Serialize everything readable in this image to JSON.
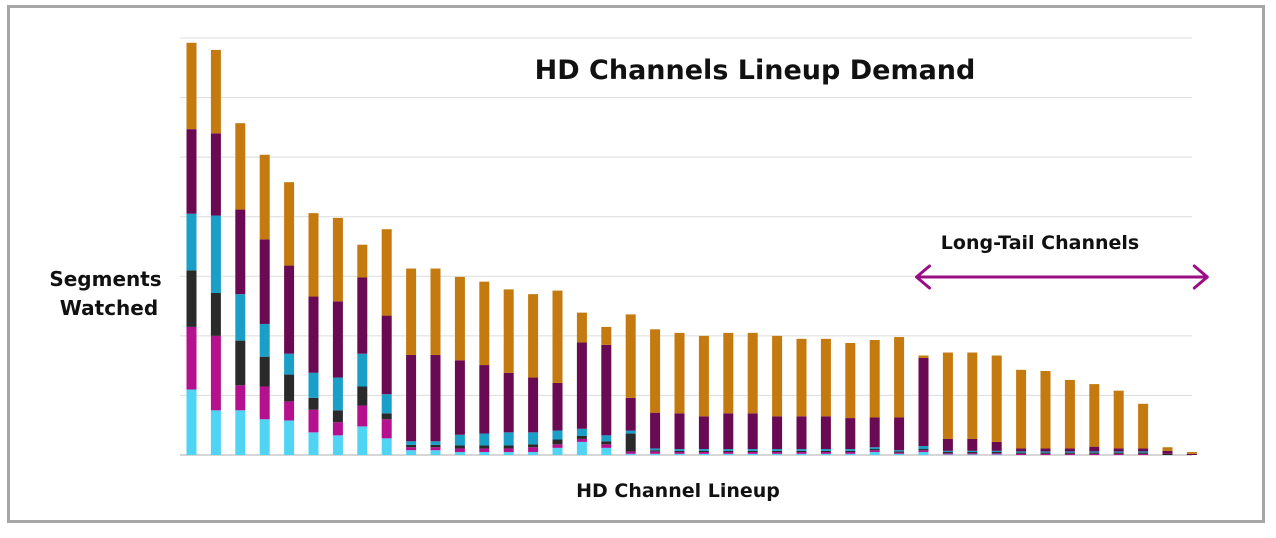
{
  "chart_data": {
    "type": "bar",
    "stacked": true,
    "title": "HD Channels Lineup Demand",
    "xlabel": "HD Channel Lineup",
    "ylabel": "Segments Watched",
    "ylim": [
      0,
      7
    ],
    "grid": true,
    "legend": "none",
    "annotation": {
      "text": "Long-Tail Channels",
      "from_bar": 30,
      "to_bar": 42,
      "color": "#9b0d85"
    },
    "colors": [
      "#4fd4f4",
      "#b5108e",
      "#2a2a2a",
      "#1a9fc9",
      "#6a0a52",
      "#c47a0e"
    ],
    "series": [
      {
        "values": [
          1.1,
          0.75,
          0.75,
          0.6,
          0.58,
          0.38,
          0.33,
          0.48,
          0.28,
          0.08,
          0.08,
          0.05,
          0.05,
          0.05,
          0.05,
          0.12,
          0.22,
          0.12,
          0.02,
          0.02,
          0.02,
          0.02,
          0.02,
          0.02,
          0.02,
          0.02,
          0.02,
          0.02,
          0.05,
          0.02,
          0.05,
          0.01,
          0.01,
          0.01,
          0,
          0,
          0,
          0,
          0,
          0,
          0,
          0
        ]
      },
      {
        "values": [
          1.05,
          1.25,
          0.42,
          0.55,
          0.32,
          0.38,
          0.22,
          0.35,
          0.32,
          0.05,
          0.05,
          0.06,
          0.06,
          0.06,
          0.08,
          0.06,
          0.05,
          0.06,
          0.04,
          0.04,
          0.03,
          0.03,
          0.03,
          0.03,
          0.03,
          0.03,
          0.03,
          0.03,
          0.03,
          0.02,
          0.03,
          0.02,
          0.02,
          0.02,
          0.02,
          0.02,
          0.02,
          0.02,
          0.02,
          0.02,
          0,
          0
        ]
      },
      {
        "values": [
          0.95,
          0.72,
          0.75,
          0.5,
          0.45,
          0.2,
          0.2,
          0.32,
          0.1,
          0.04,
          0.04,
          0.05,
          0.05,
          0.05,
          0.05,
          0.08,
          0.05,
          0.05,
          0.3,
          0.02,
          0.02,
          0.02,
          0.02,
          0.02,
          0.02,
          0.02,
          0.02,
          0.02,
          0.02,
          0.02,
          0.02,
          0.02,
          0.02,
          0.02,
          0.02,
          0.02,
          0.02,
          0.02,
          0.02,
          0.02,
          0.02,
          0
        ]
      },
      {
        "values": [
          0.95,
          1.3,
          0.78,
          0.55,
          0.35,
          0.42,
          0.55,
          0.55,
          0.32,
          0.06,
          0.06,
          0.18,
          0.2,
          0.22,
          0.2,
          0.15,
          0.12,
          0.1,
          0.05,
          0.03,
          0.03,
          0.03,
          0.03,
          0.03,
          0.03,
          0.03,
          0.03,
          0.03,
          0.03,
          0.02,
          0.05,
          0.02,
          0.02,
          0.02,
          0.02,
          0.02,
          0.02,
          0.02,
          0.02,
          0.02,
          0,
          0
        ]
      },
      {
        "values": [
          1.42,
          1.38,
          1.42,
          1.42,
          1.48,
          1.28,
          1.28,
          1.28,
          1.32,
          1.45,
          1.45,
          1.25,
          1.15,
          1.0,
          0.92,
          0.8,
          1.45,
          1.52,
          0.55,
          0.6,
          0.6,
          0.55,
          0.6,
          0.6,
          0.55,
          0.55,
          0.55,
          0.52,
          0.5,
          0.55,
          1.48,
          0.2,
          0.2,
          0.15,
          0.05,
          0.05,
          0.05,
          0.08,
          0.05,
          0.05,
          0.05,
          0.02
        ]
      },
      {
        "values": [
          1.45,
          1.4,
          1.45,
          1.42,
          1.4,
          1.4,
          1.4,
          0.55,
          1.45,
          1.45,
          1.45,
          1.4,
          1.4,
          1.4,
          1.4,
          1.55,
          0.5,
          0.3,
          1.4,
          1.4,
          1.35,
          1.35,
          1.35,
          1.35,
          1.35,
          1.3,
          1.3,
          1.26,
          1.3,
          1.35,
          0.04,
          1.45,
          1.45,
          1.45,
          1.32,
          1.3,
          1.15,
          1.05,
          0.97,
          0.75,
          0.06,
          0.03
        ]
      }
    ]
  }
}
